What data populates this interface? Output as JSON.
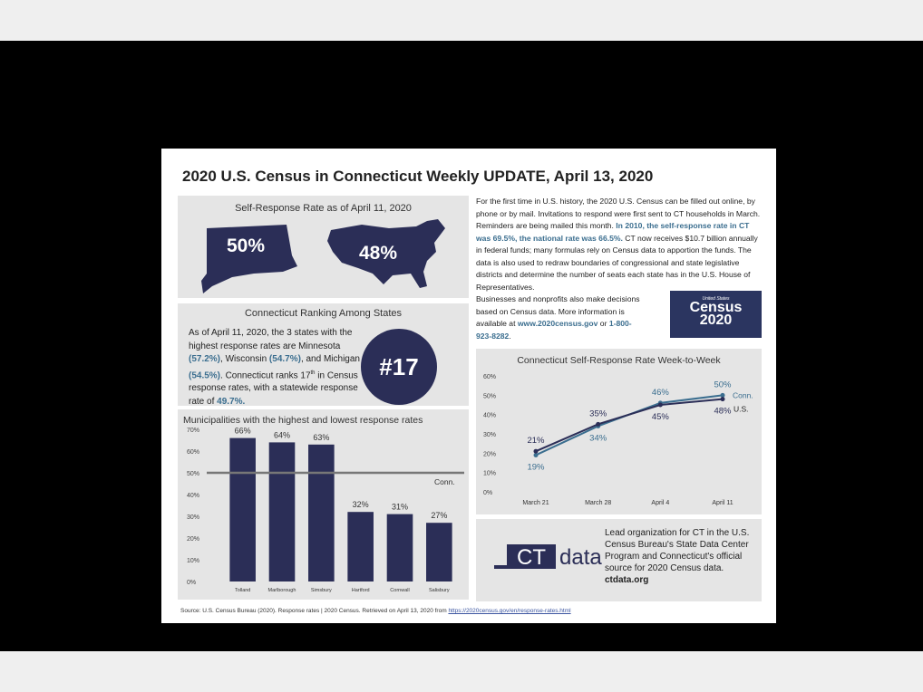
{
  "title": "2020 U.S. Census in Connecticut  Weekly UPDATE, April 13, 2020",
  "self_response": {
    "heading": "Self-Response Rate as of April 11, 2020",
    "ct_rate": "50%",
    "us_rate": "48%"
  },
  "ranking": {
    "heading": "Connecticut Ranking Among States",
    "text_1": "As of April 11, 2020, the 3 states with the highest response rates are Minnesota ",
    "mn": "(57.2%)",
    "text_2": ", Wisconsin ",
    "wi": "(54.7%)",
    "text_3": ", and Michigan ",
    "mi": "(54.5%)",
    "text_4": ". Connecticut ranks 17",
    "th": "th",
    "text_5": " in Census response rates, with a statewide response rate of ",
    "ct": "49.7%.",
    "badge": "#17"
  },
  "intro": {
    "p1": "For the first time in U.S. history, the 2020 U.S. Census can be filled out online, by phone or by mail. Invitations to respond were first sent to CT households in March. Reminders are being mailed this month. ",
    "p1_hl": "In 2010, the self-response rate in CT was 69.5%, the national rate was 66.5%.",
    "p2": "  CT now receives $10.7 billion annually in federal funds; many formulas rely on Census data to apportion the funds.  The data is also used to redraw boundaries of congressional and state legislative districts and determine the number of seats each state has in the U.S. House of Representatives.",
    "p3": " Businesses and nonprofits also make decisions based on Census data. More information is available at ",
    "url": "www.2020census.gov",
    "or": " or ",
    "phone": "1-800-923-8282",
    "end": "."
  },
  "census_logo": {
    "top": "United States",
    "mid": "Census",
    "year": "2020"
  },
  "line_chart": {
    "heading": "Connecticut Self-Response Rate Week-to-Week",
    "series_label_ct": "Conn.",
    "series_label_us": "U.S."
  },
  "bar_chart": {
    "heading": "Municipalities with the highest and lowest response rates",
    "ref_label": "Conn."
  },
  "ctdata": {
    "logo_ct": "CT",
    "logo_data": "data",
    "text": "Lead organization for CT in the U.S. Census Bureau's State Data Center Program and Connecticut's official source for 2020 Census data.",
    "link": "ctdata.org"
  },
  "source": {
    "text": "Source: U.S. Census Bureau (2020). Response rates | 2020 Census. Retrieved on April 13, 2020 from ",
    "link": "https://2020census.gov/en/response-rates.html"
  },
  "colors": {
    "navy": "#2b2e57",
    "teal": "#3b6e8f",
    "panel": "#e5e5e5"
  },
  "chart_data": [
    {
      "type": "line",
      "title": "Connecticut Self-Response Rate Week-to-Week",
      "x": [
        "March 21",
        "March 28",
        "April 4",
        "April 11"
      ],
      "series": [
        {
          "name": "Conn.",
          "values": [
            19,
            34,
            46,
            50
          ],
          "labels": [
            "19%",
            "34%",
            "46%",
            "50%"
          ],
          "color": "#3b6e8f"
        },
        {
          "name": "U.S.",
          "values": [
            21,
            35,
            45,
            48
          ],
          "labels": [
            "21%",
            "35%",
            "45%",
            "48%"
          ],
          "color": "#2b2e57"
        }
      ],
      "yticks": [
        "0%",
        "10%",
        "20%",
        "30%",
        "40%",
        "50%",
        "60%"
      ],
      "ylim": [
        0,
        60
      ]
    },
    {
      "type": "bar",
      "title": "Municipalities with the highest and lowest response rates",
      "categories": [
        "Tolland",
        "Marlborough",
        "Simsbury",
        "Hartford",
        "Cornwall",
        "Salisbury"
      ],
      "values": [
        66,
        64,
        63,
        32,
        31,
        27
      ],
      "labels": [
        "66%",
        "64%",
        "63%",
        "32%",
        "31%",
        "27%"
      ],
      "reference": {
        "name": "Conn.",
        "value": 50
      },
      "yticks": [
        "0%",
        "10%",
        "20%",
        "30%",
        "40%",
        "50%",
        "60%",
        "70%"
      ],
      "ylim": [
        0,
        70
      ]
    }
  ]
}
